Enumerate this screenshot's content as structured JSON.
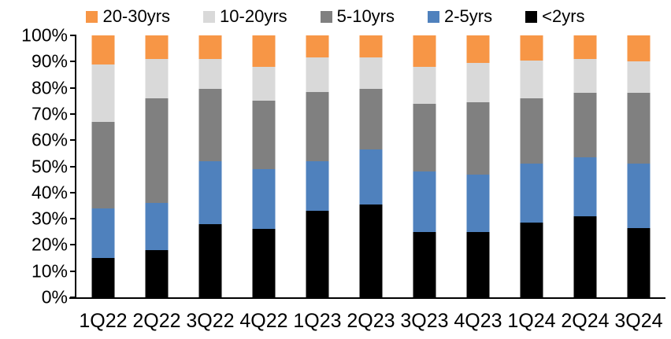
{
  "chart_data": {
    "type": "bar",
    "stacked": true,
    "percent_stacked": true,
    "title": "",
    "xlabel": "",
    "ylabel": "",
    "ylim": [
      0,
      100
    ],
    "grid": false,
    "legend_position": "top",
    "categories": [
      "1Q22",
      "2Q22",
      "3Q22",
      "4Q22",
      "1Q23",
      "2Q23",
      "3Q23",
      "4Q23",
      "1Q24",
      "2Q24",
      "3Q24"
    ],
    "series": [
      {
        "name": "<2yrs",
        "color": "#000000",
        "values": [
          15,
          18,
          28,
          26,
          33,
          35.5,
          25,
          25,
          28.5,
          31,
          26.5
        ]
      },
      {
        "name": "2-5yrs",
        "color": "#4F81BD",
        "values": [
          19,
          18,
          24,
          23,
          19,
          21,
          23,
          22,
          22.5,
          22.5,
          24.5
        ]
      },
      {
        "name": "5-10yrs",
        "color": "#808080",
        "values": [
          33,
          40,
          27.5,
          26,
          26.5,
          23,
          26,
          27.5,
          25,
          24.5,
          27
        ]
      },
      {
        "name": "10-20yrs",
        "color": "#D9D9D9",
        "values": [
          22,
          15,
          11.5,
          13,
          13,
          12,
          14,
          15,
          14.5,
          13,
          12
        ]
      },
      {
        "name": "20-30yrs",
        "color": "#F79646",
        "values": [
          11,
          9,
          9,
          12,
          8.5,
          8.5,
          12,
          10.5,
          9.5,
          9,
          10
        ]
      }
    ],
    "legend_order": [
      "20-30yrs",
      "10-20yrs",
      "5-10yrs",
      "2-5yrs",
      "<2yrs"
    ],
    "y_ticks": [
      "100%",
      "90%",
      "80%",
      "70%",
      "60%",
      "50%",
      "40%",
      "30%",
      "20%",
      "10%",
      "0%"
    ]
  }
}
